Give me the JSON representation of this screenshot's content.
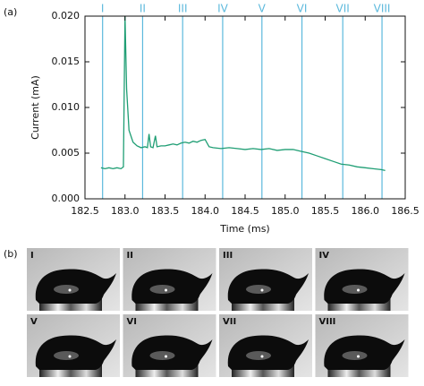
{
  "chart_data": {
    "type": "line",
    "panel_label": "(a)",
    "xlabel": "Time (ms)",
    "ylabel": "Current (mA)",
    "color": "#1f9e74",
    "marker_color": "#5cb9dc",
    "xlim": [
      182.5,
      186.5
    ],
    "xticks": [
      182.5,
      {
        "value": 183,
        "label": "183.0"
      },
      183.5,
      {
        "value": 184,
        "label": "184.0"
      },
      184.5,
      {
        "value": 185,
        "label": "185.0"
      },
      185.5,
      {
        "value": 186,
        "label": "186.0"
      },
      186.5
    ],
    "ylim": [
      0,
      0.02
    ],
    "yticks": [
      {
        "value": 0,
        "label": "0.000"
      },
      {
        "value": 0.005,
        "label": "0.005"
      },
      {
        "value": 0.01,
        "label": "0.010"
      },
      {
        "value": 0.015,
        "label": "0.015"
      },
      {
        "value": 0.02,
        "label": "0.020"
      }
    ],
    "x": [
      182.7,
      182.75,
      182.8,
      182.85,
      182.9,
      182.95,
      182.98,
      183.0,
      183.02,
      183.05,
      183.1,
      183.15,
      183.2,
      183.25,
      183.28,
      183.3,
      183.32,
      183.35,
      183.38,
      183.4,
      183.45,
      183.5,
      183.55,
      183.6,
      183.65,
      183.7,
      183.75,
      183.8,
      183.85,
      183.9,
      183.95,
      184.0,
      184.05,
      184.1,
      184.2,
      184.3,
      184.4,
      184.5,
      184.6,
      184.7,
      184.8,
      184.9,
      185.0,
      185.1,
      185.2,
      185.3,
      185.4,
      185.5,
      185.6,
      185.7,
      185.8,
      185.9,
      186.0,
      186.1,
      186.2,
      186.25
    ],
    "values": [
      0.0034,
      0.0033,
      0.0034,
      0.0033,
      0.0034,
      0.0033,
      0.0035,
      0.02,
      0.012,
      0.0075,
      0.0062,
      0.0058,
      0.0056,
      0.0057,
      0.0056,
      0.0071,
      0.0057,
      0.0056,
      0.0069,
      0.0057,
      0.0058,
      0.0058,
      0.0059,
      0.006,
      0.0059,
      0.0061,
      0.0062,
      0.0061,
      0.0063,
      0.0062,
      0.0064,
      0.0065,
      0.0057,
      0.0056,
      0.0055,
      0.0056,
      0.0055,
      0.0054,
      0.0055,
      0.0054,
      0.0055,
      0.0053,
      0.0054,
      0.0054,
      0.0052,
      0.005,
      0.0047,
      0.0044,
      0.0041,
      0.0038,
      0.0037,
      0.0035,
      0.0034,
      0.0033,
      0.0032,
      0.0031
    ],
    "markers": [
      {
        "x": 182.72,
        "label": "I"
      },
      {
        "x": 183.22,
        "label": "II"
      },
      {
        "x": 183.72,
        "label": "III"
      },
      {
        "x": 184.22,
        "label": "IV"
      },
      {
        "x": 184.71,
        "label": "V"
      },
      {
        "x": 185.21,
        "label": "VI"
      },
      {
        "x": 185.72,
        "label": "VII"
      },
      {
        "x": 186.21,
        "label": "VIII"
      }
    ]
  },
  "photos": {
    "panel_label": "(b)",
    "labels": [
      "I",
      "II",
      "III",
      "IV",
      "V",
      "VI",
      "VII",
      "VIII"
    ]
  }
}
